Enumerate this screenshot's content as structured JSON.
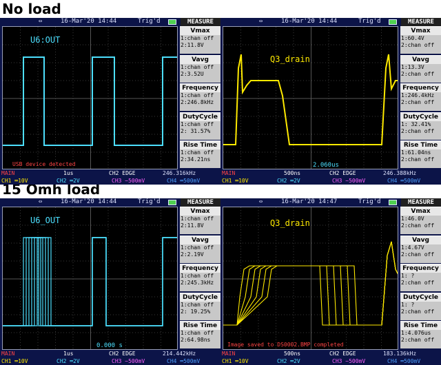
{
  "sections": [
    {
      "title": "No load"
    },
    {
      "title": "15 Omh load"
    }
  ],
  "colors": {
    "ch1": "#4de0ff",
    "ch2": "#ffea00",
    "status_main": "#ff4444",
    "ch3": "#ff60ff",
    "ch4": "#4d9fff"
  },
  "panels": [
    {
      "date": "16-Mar'20 14:44",
      "trig": "Trig'd",
      "measure_title": "MEASURE",
      "trace_label": "U6:OUT",
      "trace_color": "#4de0ff",
      "bottom_message": "USB device detected",
      "cursor_readout": "",
      "measures": [
        {
          "name": "Vmax",
          "line1": "1:chan off",
          "line2": "2:11.8V"
        },
        {
          "name": "Vavg",
          "line1": "1:chan off",
          "line2": "2:3.52U"
        },
        {
          "name": "Frequency",
          "line1": "1:chan off",
          "line2": "2:246.8kHz"
        },
        {
          "name": "DutyCycle",
          "line1": "1:chan off",
          "line2": "2: 31.57%"
        },
        {
          "name": "Rise Time",
          "line1": "1:chan off",
          "line2": "2:34.21ns"
        }
      ],
      "status": {
        "main": "MAIN",
        "timebase": "1us",
        "trigger": "CH2 EDGE",
        "freq": "246.316kHz",
        "ch1": "CH1 ═10V",
        "ch2": "CH2 ═2V",
        "ch3": "CH3 ~500mV",
        "ch4": "CH4 ═500mV"
      }
    },
    {
      "date": "16-Mar'20 14:44",
      "trig": "Trig'd",
      "measure_title": "MEASURE",
      "trace_label": "Q3_drain",
      "trace_color": "#ffea00",
      "bottom_message": "",
      "cursor_readout": "2.060us",
      "measures": [
        {
          "name": "Vmax",
          "line1": "1:60.4V",
          "line2": "2:chan off"
        },
        {
          "name": "Vavg",
          "line1": "1:13.3V",
          "line2": "2:chan off"
        },
        {
          "name": "Frequency",
          "line1": "1:246.4kHz",
          "line2": "2:chan off"
        },
        {
          "name": "DutyCycle",
          "line1": "1: 32.41%",
          "line2": "2:chan off"
        },
        {
          "name": "Rise Time",
          "line1": "1:61.04ns",
          "line2": "2:chan off"
        }
      ],
      "status": {
        "main": "MAIN",
        "timebase": "500ns",
        "trigger": "CH2 EDGE",
        "freq": "246.388kHz",
        "ch1": "CH1 ═10V",
        "ch2": "CH2 ═2V",
        "ch3": "CH3 ~500mV",
        "ch4": "CH4 ═500mV"
      }
    },
    {
      "date": "16-Mar'20 14:44",
      "trig": "Trig'd",
      "measure_title": "MEASURE",
      "trace_label": "U6_OUT",
      "trace_color": "#4de0ff",
      "bottom_message": "",
      "cursor_readout": "0.000 s",
      "measures": [
        {
          "name": "Vmax",
          "line1": "1:chan off",
          "line2": "2:11.8V"
        },
        {
          "name": "Vavg",
          "line1": "1:chan off",
          "line2": "2:2.19V"
        },
        {
          "name": "Frequency",
          "line1": "1:chan off",
          "line2": "2:245.3kHz"
        },
        {
          "name": "DutyCycle",
          "line1": "1:chan off",
          "line2": "2: 19.25%"
        },
        {
          "name": "Rise Time",
          "line1": "1:chan off",
          "line2": "2:64.98ns"
        }
      ],
      "status": {
        "main": "MAIN",
        "timebase": "1us",
        "trigger": "CH2 EDGE",
        "freq": "214.442kHz",
        "ch1": "CH1 ═10V",
        "ch2": "CH2 ═2V",
        "ch3": "CH3 ~500mV",
        "ch4": "CH4 ═500mV"
      }
    },
    {
      "date": "16-Mar'20 14:47",
      "trig": "Trig'd",
      "measure_title": "MEASURE",
      "trace_label": "Q3_drain",
      "trace_color": "#ffea00",
      "bottom_message": "Image saved to DS0002.BMP completed",
      "cursor_readout": "",
      "measures": [
        {
          "name": "Vmax",
          "line1": "1:46.0V",
          "line2": "2:chan off"
        },
        {
          "name": "Vavg",
          "line1": "1:4.67V",
          "line2": "2:chan off"
        },
        {
          "name": "Frequency",
          "line1": "1:    ?",
          "line2": "2:chan off"
        },
        {
          "name": "DutyCycle",
          "line1": "1:    ?",
          "line2": "2:chan off"
        },
        {
          "name": "Rise Time",
          "line1": "1:4.076us",
          "line2": "2:chan off"
        }
      ],
      "status": {
        "main": "MAIN",
        "timebase": "500ns",
        "trigger": "CH2 EDGE",
        "freq": "183.136kHz",
        "ch1": "CH1 ═10V",
        "ch2": "CH2 ═2V",
        "ch3": "CH3 ~500mV",
        "ch4": "CH4 ═500mV"
      }
    }
  ]
}
